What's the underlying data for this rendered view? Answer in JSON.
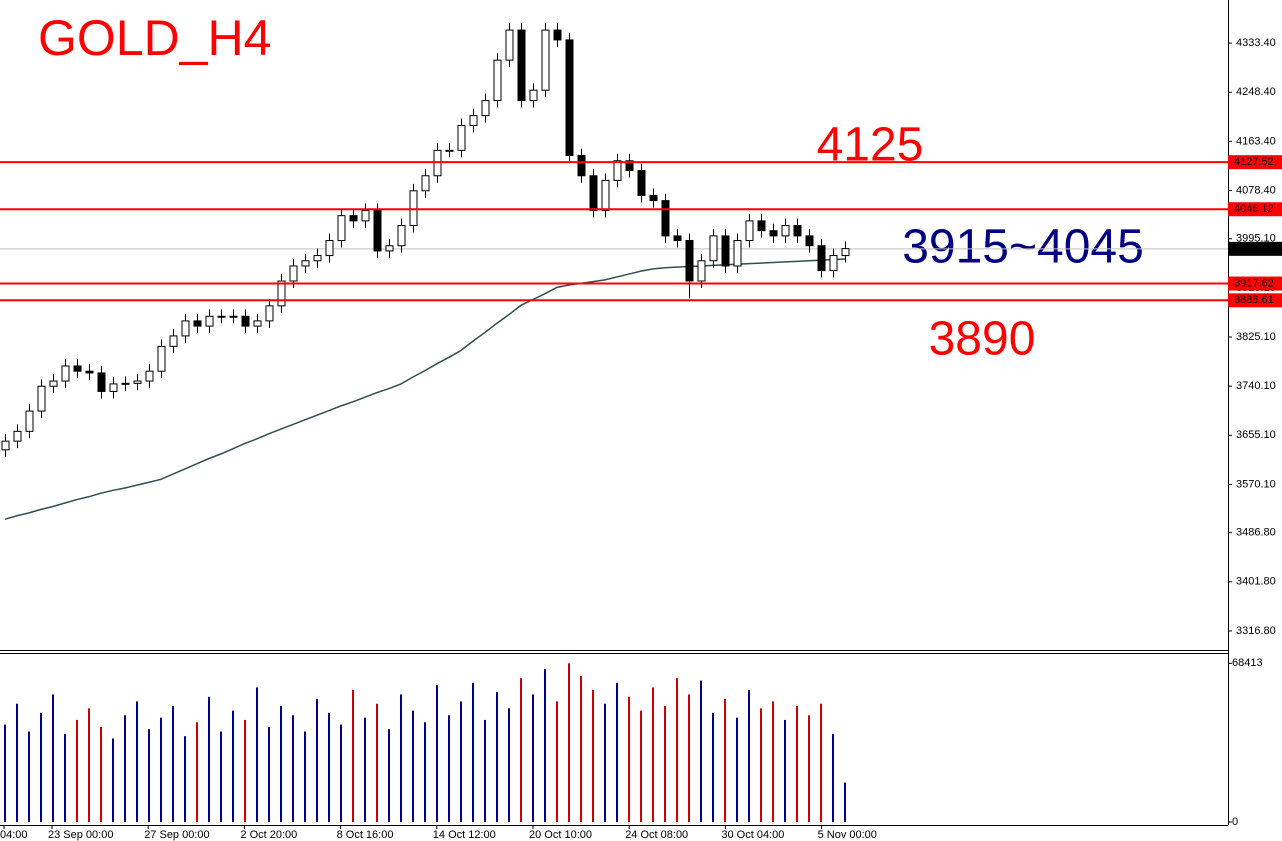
{
  "chart_data": {
    "type": "candlestick",
    "title": "GOLD_H4",
    "title_color": "#ff0000",
    "x_labels": [
      "04:00",
      "23 Sep 00:00",
      "27 Sep 00:00",
      "2 Oct 20:00",
      "8 Oct 16:00",
      "14 Oct 12:00",
      "20 Oct 10:00",
      "24 Oct 08:00",
      "30 Oct 04:00",
      "5 Nov 00:00"
    ],
    "ylim": [
      3283.8,
      4408
    ],
    "yticks": [
      {
        "value": 4333.4,
        "label": "4333.40"
      },
      {
        "value": 4248.4,
        "label": "4248.40"
      },
      {
        "value": 4163.4,
        "label": "4163.40"
      },
      {
        "value": 4078.4,
        "label": "4078.40"
      },
      {
        "value": 3995.1,
        "label": "3995.10"
      },
      {
        "value": 3910.1,
        "label": "3910.10"
      },
      {
        "value": 3825.1,
        "label": "3825.10"
      },
      {
        "value": 3740.1,
        "label": "3740.10"
      },
      {
        "value": 3655.1,
        "label": "3655.10"
      },
      {
        "value": 3570.1,
        "label": "3570.10"
      },
      {
        "value": 3486.8,
        "label": "3486.80"
      },
      {
        "value": 3401.8,
        "label": "3401.80"
      },
      {
        "value": 3316.8,
        "label": "3316.80"
      }
    ],
    "candles": {
      "up_color": "#ffffff",
      "down_color": "#000000",
      "open": [
        3630,
        3645,
        3662,
        3697,
        3740,
        3749,
        3775,
        3766,
        3763,
        3731,
        3744,
        3745,
        3749,
        3766,
        3809,
        3827,
        3853,
        3844,
        3861,
        3861,
        3861,
        3844,
        3853,
        3879,
        3922,
        3948,
        3957,
        3966,
        3992,
        4035,
        4026,
        4044,
        3974,
        3983,
        4018,
        4078,
        4104,
        4148,
        4148,
        4191,
        4208,
        4234,
        4304,
        4356,
        4234,
        4252,
        4356,
        4339,
        4139,
        4104,
        4044,
        4096,
        4130,
        4113,
        4070,
        4061,
        4000,
        3992,
        3922,
        3957,
        4000,
        3948,
        3992,
        4026,
        4009,
        4000,
        4018,
        4000,
        3983,
        3940,
        3966
      ],
      "high": [
        3657,
        3674,
        3709,
        3752,
        3761,
        3787,
        3787,
        3778,
        3775,
        3756,
        3757,
        3761,
        3778,
        3821,
        3839,
        3865,
        3865,
        3873,
        3873,
        3873,
        3873,
        3865,
        3891,
        3934,
        3960,
        3969,
        3978,
        4004,
        4047,
        4047,
        4056,
        4056,
        3995,
        4030,
        4090,
        4116,
        4160,
        4160,
        4203,
        4220,
        4246,
        4316,
        4368,
        4368,
        4264,
        4368,
        4368,
        4351,
        4151,
        4116,
        4108,
        4142,
        4142,
        4125,
        4082,
        4073,
        4012,
        4004,
        3969,
        4012,
        4012,
        4004,
        4038,
        4038,
        4021,
        4030,
        4030,
        4012,
        3995,
        3978,
        3990
      ],
      "low": [
        3618,
        3633,
        3650,
        3685,
        3728,
        3737,
        3754,
        3751,
        3719,
        3719,
        3732,
        3733,
        3737,
        3754,
        3797,
        3815,
        3832,
        3832,
        3849,
        3849,
        3832,
        3832,
        3841,
        3867,
        3910,
        3936,
        3945,
        3954,
        3980,
        4014,
        4014,
        3962,
        3962,
        3971,
        4006,
        4066,
        4092,
        4136,
        4136,
        4179,
        4196,
        4222,
        4292,
        4222,
        4222,
        4240,
        4327,
        4127,
        4092,
        4032,
        4032,
        4084,
        4101,
        4058,
        4049,
        3988,
        3980,
        3892,
        3910,
        3945,
        3936,
        3936,
        3980,
        3997,
        3988,
        3988,
        3988,
        3971,
        3928,
        3928,
        3954
      ],
      "close": [
        3645,
        3662,
        3697,
        3740,
        3749,
        3775,
        3766,
        3763,
        3731,
        3744,
        3745,
        3749,
        3766,
        3809,
        3827,
        3853,
        3844,
        3861,
        3861,
        3861,
        3844,
        3853,
        3879,
        3922,
        3948,
        3957,
        3966,
        3992,
        4035,
        4026,
        4044,
        3974,
        3983,
        4018,
        4078,
        4104,
        4148,
        4148,
        4191,
        4208,
        4234,
        4304,
        4356,
        4234,
        4252,
        4356,
        4339,
        4139,
        4104,
        4044,
        4096,
        4130,
        4113,
        4070,
        4061,
        4000,
        3992,
        3922,
        3957,
        4000,
        3948,
        3992,
        4026,
        4009,
        4000,
        4018,
        4000,
        3983,
        3940,
        3966,
        3978
      ]
    },
    "ma": {
      "color": "#2f4f4f",
      "values": [
        3510,
        3516,
        3521,
        3527,
        3532,
        3538,
        3544,
        3549,
        3555,
        3560,
        3564,
        3569,
        3574,
        3579,
        3588,
        3597,
        3606,
        3615,
        3623,
        3632,
        3641,
        3649,
        3658,
        3666,
        3674,
        3682,
        3690,
        3698,
        3706,
        3713,
        3721,
        3729,
        3736,
        3744,
        3756,
        3767,
        3779,
        3790,
        3802,
        3818,
        3833,
        3849,
        3864,
        3880,
        3890,
        3900,
        3911,
        3915,
        3918,
        3921,
        3924,
        3929,
        3934,
        3939,
        3943,
        3945,
        3946,
        3947,
        3948,
        3949,
        3950,
        3951,
        3952,
        3953,
        3954,
        3955,
        3956,
        3957,
        3958,
        3959,
        3960
      ]
    },
    "volume": {
      "up_color": "#00008b",
      "down_color": "#cd0000",
      "ylim": [
        0,
        72000
      ],
      "yticks": [
        68413,
        0
      ],
      "values": [
        42000,
        51000,
        39000,
        47000,
        55000,
        38000,
        44000,
        49000,
        41000,
        36000,
        46000,
        52000,
        40000,
        45000,
        50000,
        37000,
        43000,
        54000,
        39000,
        48000,
        44000,
        58000,
        41000,
        50000,
        46000,
        39000,
        53000,
        47000,
        42000,
        57000,
        45000,
        51000,
        40000,
        55000,
        48000,
        43000,
        59000,
        46000,
        52000,
        60000,
        44000,
        56000,
        49000,
        62000,
        55000,
        66000,
        52000,
        68413,
        63000,
        57000,
        51000,
        60000,
        54000,
        48000,
        58000,
        50000,
        62000,
        55000,
        61000,
        47000,
        53000,
        45000,
        57000,
        49000,
        52000,
        44000,
        50000,
        46000,
        51000,
        38000,
        17000
      ]
    },
    "levels": [
      {
        "value": 4127.52,
        "color": "#ff0000"
      },
      {
        "value": 4046.12,
        "color": "#ff0000"
      },
      {
        "value": 3917.62,
        "color": "#ff0000"
      },
      {
        "value": 3888.61,
        "color": "#ff0000"
      }
    ],
    "last_price": {
      "value": 3977.63,
      "color": "#000000",
      "line_color": "#c0c0c0"
    },
    "annotations": [
      {
        "text": "4125",
        "color": "#ff0000"
      },
      {
        "text": "3915~4045",
        "color": "#000080"
      },
      {
        "text": "3890",
        "color": "#ff0000"
      }
    ]
  }
}
